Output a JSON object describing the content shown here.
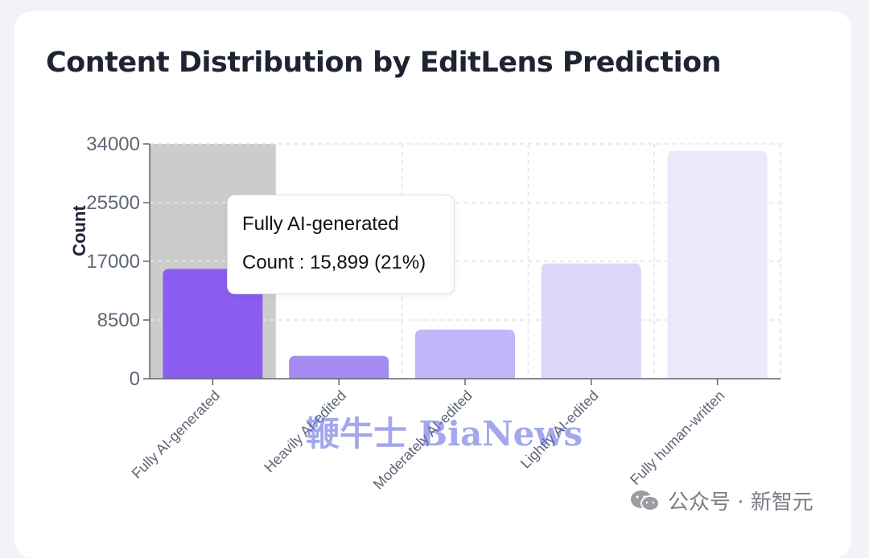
{
  "title": "Content Distribution by EditLens Prediction",
  "tooltip": {
    "name": "Fully AI-generated",
    "label": "Count",
    "value": "15,899 (21%)"
  },
  "watermark": "鞭牛士 BiaNews",
  "source": {
    "icon": "wechat-icon",
    "text": "公众号 · 新智元"
  },
  "chart_data": {
    "type": "bar",
    "title": "Content Distribution by EditLens Prediction",
    "xlabel": "",
    "ylabel": "Count",
    "ylim": [
      0,
      34000
    ],
    "yticks": [
      0,
      8500,
      17000,
      25500,
      34000
    ],
    "grid": true,
    "categories": [
      "Fully AI-generated",
      "Heavily AI-edited",
      "Moderately AI-edited",
      "Lightly AI-edited",
      "Fully human-written"
    ],
    "values": [
      15899,
      3300,
      7100,
      16700,
      33000
    ],
    "colors": [
      "#8a5cf0",
      "#a58af2",
      "#c3b6f8",
      "#dcd7fa",
      "#ebe8fc"
    ],
    "highlight_category": "Fully AI-generated",
    "highlight_color": "#cccccc",
    "tick_color": "#5f6675",
    "axis_color": "#666666",
    "grid_color": "#e1e3e8"
  }
}
